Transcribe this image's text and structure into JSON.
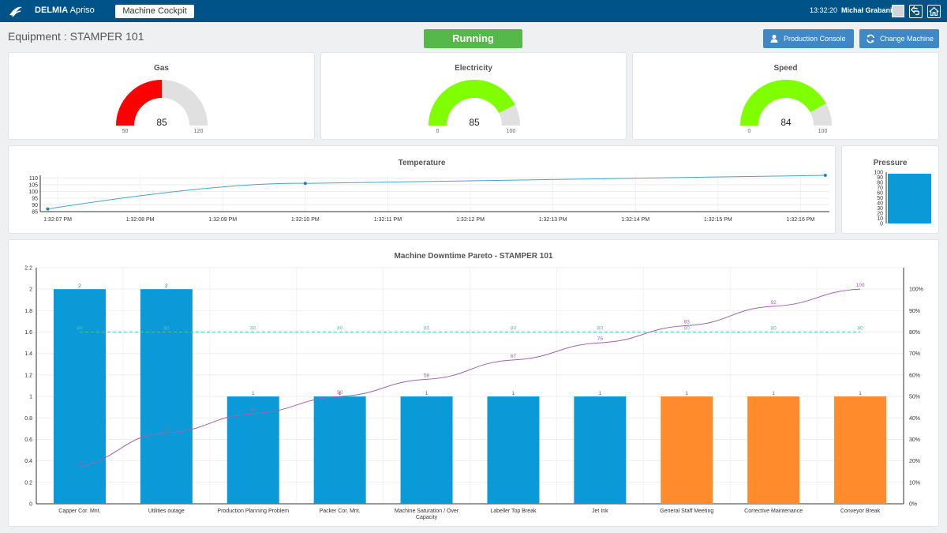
{
  "header": {
    "brand_bold": "DELMIA",
    "brand_light": " Apriso",
    "active_tab": "Machine Cockpit",
    "clock": "13:32:20",
    "user": "Michał Grabania"
  },
  "toolbar": {
    "equipment_label": "Equipment : STAMPER 101",
    "status": "Running",
    "status_color": "#54b948",
    "production_console": "Production Console",
    "change_machine": "Change Machine"
  },
  "gauges": [
    {
      "title": "Gas",
      "value": 85,
      "value_text": "85",
      "min_text": "50",
      "max_text": "120",
      "min": 50,
      "max": 120,
      "color": "#ff0000"
    },
    {
      "title": "Electricity",
      "value": 85,
      "value_text": "85",
      "min_text": "0",
      "max_text": "100",
      "min": 0,
      "max": 100,
      "color": "#7fff00"
    },
    {
      "title": "Speed",
      "value": 84,
      "value_text": "84",
      "min_text": "0",
      "max_text": "100",
      "min": 0,
      "max": 100,
      "color": "#7fff00"
    }
  ],
  "temperature": {
    "title": "Temperature",
    "color": "#4aa3c9",
    "y_ticks": [
      "110",
      "105",
      "100",
      "95",
      "90",
      "85"
    ],
    "x_ticks": [
      "1:32:07 PM",
      "1:32:08 PM",
      "1:32:09 PM",
      "1:32:10 PM",
      "1:32:11 PM",
      "1:32:12 PM",
      "1:32:13 PM",
      "1:32:14 PM",
      "1:32:15 PM",
      "1:32:16 PM"
    ]
  },
  "pressure": {
    "title": "Pressure",
    "value": 100,
    "color": "#0a9ad8",
    "y_ticks": [
      "100",
      "90",
      "80",
      "70",
      "60",
      "50",
      "40",
      "30",
      "20",
      "10",
      "0"
    ]
  },
  "chart_data": [
    {
      "type": "line",
      "title": "Temperature",
      "x": [
        "1:32:06 PM",
        "1:32:10 PM",
        "1:32:16 PM"
      ],
      "values": [
        87,
        106,
        112
      ],
      "ylim": [
        85,
        112
      ]
    },
    {
      "type": "bar",
      "title": "Pressure",
      "values": [
        100
      ],
      "ylim": [
        0,
        100
      ]
    },
    {
      "type": "bar",
      "title": "Machine Downtime Pareto - STAMPER 101",
      "categories": [
        "Capper Cor. Mnt.",
        "Utilities outage",
        "Production Planning Problem",
        "Packer Cor. Mnt.",
        "Machine Saturation / Over Capacity",
        "Labeller Top Break",
        "Jet Ink",
        "General Staff Meeting",
        "Corrective Maintenance",
        "Conveyor Break"
      ],
      "values": [
        2,
        2,
        1,
        1,
        1,
        1,
        1,
        1,
        1,
        1
      ],
      "bar_colors": [
        "#0a9ad8",
        "#0a9ad8",
        "#0a9ad8",
        "#0a9ad8",
        "#0a9ad8",
        "#0a9ad8",
        "#0a9ad8",
        "#ff8b2c",
        "#ff8b2c",
        "#ff8b2c"
      ],
      "cumulative_percent": [
        17,
        33,
        42,
        50,
        58,
        67,
        75,
        83,
        92,
        100
      ],
      "threshold_percent": [
        80,
        80,
        80,
        80,
        80,
        80,
        80,
        80,
        80,
        80
      ],
      "ylim": [
        0,
        2.2
      ],
      "y2lim": [
        0,
        100
      ],
      "y_ticks": [
        "0",
        "0.2",
        "0.4",
        "0.6",
        "0.8",
        "1",
        "1.2",
        "1.4",
        "1.6",
        "1.8",
        "2",
        "2.2"
      ],
      "y2_ticks": [
        "0%",
        "10%",
        "20%",
        "30%",
        "40%",
        "50%",
        "60%",
        "70%",
        "80%",
        "90%",
        "100%"
      ],
      "cumulative_color": "#a062ad",
      "threshold_color": "#4fc3a8"
    }
  ]
}
